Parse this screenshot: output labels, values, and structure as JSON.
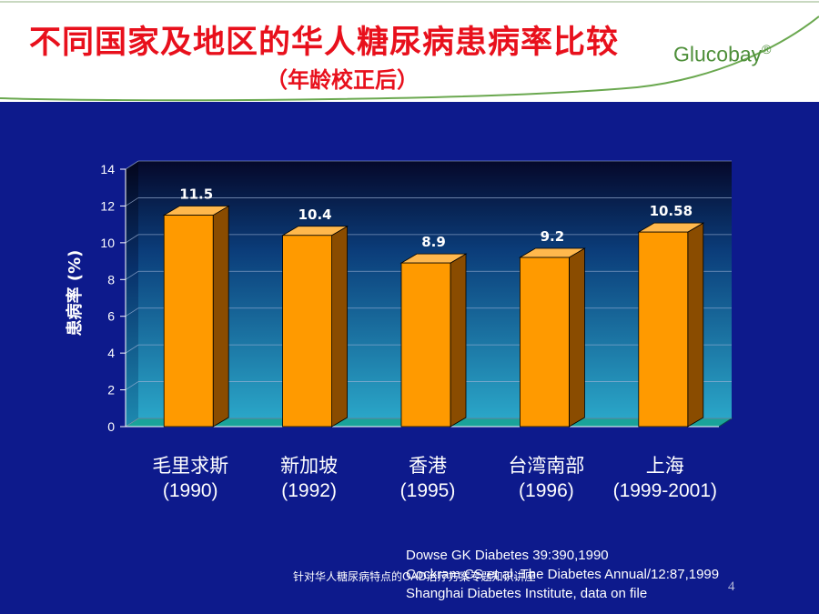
{
  "slide": {
    "title": "不同国家及地区的华人糖尿病患病率比较",
    "subtitle": "（年龄校正后）",
    "brand": "Glucobay",
    "brand_mark": "®",
    "references": [
      "Dowse GK Diabetes 39:390,1990",
      "Cockram CS et al. The Diabetes Annual/12:87,1999",
      "Shanghai Diabetes Institute, data on file"
    ],
    "footer_note": "针对华人糖尿病特点的OAD治疗方案专题知识讲座",
    "page_number": "4"
  },
  "colors": {
    "background": "#0d1a8c",
    "title": "#e8101c",
    "brand": "#4e8f3a",
    "bar_front": "#ff9a00",
    "bar_side": "#8a4c00",
    "bar_top": "#ffb84d",
    "floor": "#1aa39a"
  },
  "chart_data": {
    "type": "bar",
    "categories": [
      {
        "name": "毛里求斯",
        "year": "(1990)"
      },
      {
        "name": "新加坡",
        "year": "(1992)"
      },
      {
        "name": "香港",
        "year": "(1995)"
      },
      {
        "name": "台湾南部",
        "year": "(1996)"
      },
      {
        "name": "上海",
        "year": "(1999-2001)"
      }
    ],
    "values": [
      11.5,
      10.4,
      8.9,
      9.2,
      10.58
    ],
    "data_labels": [
      "11.5",
      "10.4",
      "8.9",
      "9.2",
      "10.58"
    ],
    "ylabel": "患病率 (%)",
    "ylim": [
      0,
      14
    ],
    "yticks": [
      0,
      2,
      4,
      6,
      8,
      10,
      12,
      14
    ],
    "grid": true,
    "style": "3d"
  }
}
